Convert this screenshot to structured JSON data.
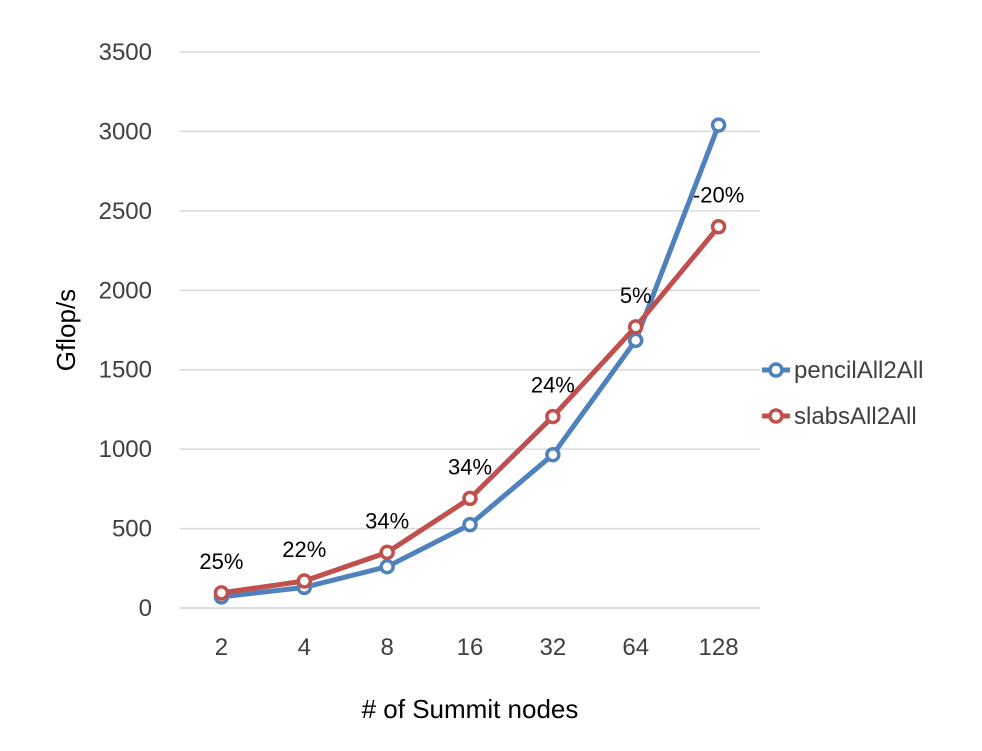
{
  "chart_data": {
    "type": "line",
    "categories": [
      "2",
      "4",
      "8",
      "16",
      "32",
      "64",
      "128"
    ],
    "xlabel": "# of Summit nodes",
    "ylabel": "Gflop/s",
    "ylim": [
      0,
      3500
    ],
    "yticks": [
      "0",
      "500",
      "1000",
      "1500",
      "2000",
      "2500",
      "3000",
      "3500"
    ],
    "grid": true,
    "legend_position": "right",
    "series": [
      {
        "name": "pencilAll2All",
        "color": "#4f81bd",
        "values": [
          70,
          130,
          260,
          525,
          965,
          1685,
          3040
        ]
      },
      {
        "name": "slabsAll2All",
        "color": "#c0504d",
        "values": [
          95,
          170,
          350,
          690,
          1205,
          1770,
          2400
        ]
      }
    ],
    "annotations": [
      {
        "category": "2",
        "text": "25%",
        "y": 95
      },
      {
        "category": "4",
        "text": "22%",
        "y": 170
      },
      {
        "category": "8",
        "text": "34%",
        "y": 350
      },
      {
        "category": "16",
        "text": "34%",
        "y": 690
      },
      {
        "category": "32",
        "text": "24%",
        "y": 1205
      },
      {
        "category": "64",
        "text": "5%",
        "y": 1770
      },
      {
        "category": "128",
        "text": "-20%",
        "y": 2400
      }
    ]
  }
}
